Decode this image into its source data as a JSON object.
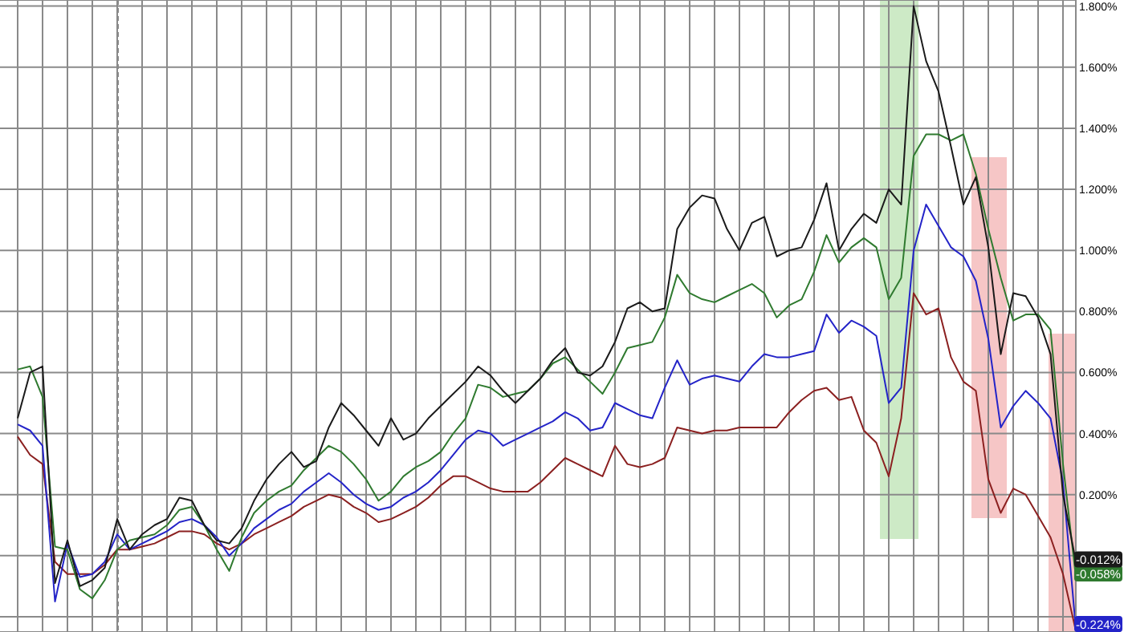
{
  "chart_data": {
    "type": "line",
    "ylim": [
      -0.25,
      1.82
    ],
    "categories": [
      null,
      null,
      null,
      null,
      null,
      null,
      null,
      null,
      null,
      null,
      null,
      null,
      null,
      null,
      null,
      null,
      null,
      null,
      null,
      null,
      null,
      null,
      null,
      null,
      null,
      null,
      null,
      null,
      null,
      null,
      null,
      null,
      null,
      null,
      null,
      null,
      null,
      null,
      null,
      null,
      null,
      null,
      null,
      null,
      null,
      null,
      null,
      null,
      null,
      null,
      null,
      null,
      null,
      null,
      null,
      null,
      null,
      null,
      null,
      null,
      null,
      null,
      null,
      null,
      null,
      null,
      null,
      null,
      null,
      null,
      null,
      null,
      null,
      null,
      null,
      null,
      null,
      null,
      null,
      null,
      null,
      null,
      null,
      null,
      null,
      null
    ],
    "yticks": [
      {
        "value": -0.2,
        "label": null
      },
      {
        "value": 0,
        "label": null
      },
      {
        "value": 0.2,
        "label": "0.200%"
      },
      {
        "value": 0.4,
        "label": "0.400%"
      },
      {
        "value": 0.6,
        "label": "0.600%"
      },
      {
        "value": 0.8,
        "label": "0.800%"
      },
      {
        "value": 1,
        "label": "1.000%"
      },
      {
        "value": 1.2,
        "label": "1.200%"
      },
      {
        "value": 1.4,
        "label": "1.400%"
      },
      {
        "value": 1.6,
        "label": "1.600%"
      },
      {
        "value": 1.8,
        "label": "1.800%"
      }
    ],
    "tick_labels": "y",
    "grid": true,
    "marker": "none",
    "line_style": "solid",
    "series": [
      {
        "color": "#8b2020",
        "values": [
          0.39,
          0.33,
          0.3,
          -0.02,
          -0.06,
          -0.06,
          -0.06,
          -0.03,
          0.02,
          0.02,
          0.03,
          0.04,
          0.06,
          0.08,
          0.08,
          0.07,
          0.04,
          0.02,
          0.04,
          0.07,
          0.09,
          0.11,
          0.13,
          0.16,
          0.18,
          0.2,
          0.19,
          0.16,
          0.14,
          0.11,
          0.12,
          0.14,
          0.16,
          0.19,
          0.23,
          0.26,
          0.26,
          0.24,
          0.22,
          0.21,
          0.21,
          0.21,
          0.24,
          0.28,
          0.32,
          0.3,
          0.28,
          0.26,
          0.36,
          0.3,
          0.29,
          0.3,
          0.32,
          0.42,
          0.41,
          0.4,
          0.41,
          0.41,
          0.42,
          0.42,
          0.42,
          0.42,
          0.47,
          0.51,
          0.54,
          0.55,
          0.51,
          0.52,
          0.41,
          0.37,
          0.26,
          0.45,
          0.86,
          0.79,
          0.81,
          0.65,
          0.57,
          0.54,
          0.25,
          0.14,
          0.22,
          0.2,
          0.13,
          0.06,
          -0.06,
          -0.24
        ]
      },
      {
        "color": "#2424c8",
        "values": [
          0.43,
          0.41,
          0.36,
          -0.15,
          0.04,
          -0.07,
          -0.06,
          -0.02,
          0.07,
          0.02,
          0.04,
          0.06,
          0.08,
          0.11,
          0.12,
          0.1,
          0.06,
          0.0,
          0.04,
          0.09,
          0.12,
          0.15,
          0.17,
          0.21,
          0.24,
          0.27,
          0.24,
          0.2,
          0.17,
          0.15,
          0.16,
          0.19,
          0.21,
          0.24,
          0.28,
          0.33,
          0.38,
          0.41,
          0.4,
          0.36,
          0.38,
          0.4,
          0.42,
          0.44,
          0.47,
          0.45,
          0.41,
          0.42,
          0.5,
          0.48,
          0.46,
          0.45,
          0.55,
          0.64,
          0.56,
          0.58,
          0.59,
          0.58,
          0.57,
          0.62,
          0.66,
          0.65,
          0.65,
          0.66,
          0.67,
          0.79,
          0.73,
          0.77,
          0.75,
          0.72,
          0.5,
          0.55,
          1.0,
          1.15,
          1.08,
          1.01,
          0.98,
          0.9,
          0.71,
          0.42,
          0.49,
          0.54,
          0.5,
          0.45,
          0.24,
          -0.224
        ],
        "value_labels": [
          null,
          null,
          null,
          null,
          null,
          null,
          null,
          null,
          null,
          null,
          null,
          null,
          null,
          null,
          null,
          null,
          null,
          null,
          null,
          null,
          null,
          null,
          null,
          null,
          null,
          null,
          null,
          null,
          null,
          null,
          null,
          null,
          null,
          null,
          null,
          null,
          null,
          null,
          null,
          null,
          null,
          null,
          null,
          null,
          null,
          null,
          null,
          null,
          null,
          null,
          null,
          null,
          null,
          null,
          null,
          null,
          null,
          null,
          null,
          null,
          null,
          null,
          null,
          null,
          null,
          null,
          null,
          null,
          null,
          null,
          null,
          null,
          null,
          null,
          null,
          null,
          null,
          null,
          null,
          null,
          null,
          null,
          null,
          null,
          null,
          "-0.224%"
        ]
      },
      {
        "color": "#2f7a2f",
        "values": [
          0.61,
          0.62,
          0.52,
          0.03,
          0.02,
          -0.11,
          -0.14,
          -0.08,
          0.02,
          0.05,
          0.06,
          0.07,
          0.1,
          0.15,
          0.16,
          0.1,
          0.02,
          -0.05,
          0.06,
          0.14,
          0.18,
          0.21,
          0.23,
          0.28,
          0.32,
          0.36,
          0.34,
          0.3,
          0.25,
          0.18,
          0.21,
          0.26,
          0.29,
          0.31,
          0.34,
          0.4,
          0.45,
          0.56,
          0.55,
          0.52,
          0.53,
          0.54,
          0.58,
          0.63,
          0.65,
          0.61,
          0.57,
          0.53,
          0.6,
          0.68,
          0.69,
          0.7,
          0.78,
          0.92,
          0.86,
          0.84,
          0.83,
          0.85,
          0.87,
          0.89,
          0.86,
          0.78,
          0.82,
          0.84,
          0.93,
          1.05,
          0.96,
          1.01,
          1.04,
          1.01,
          0.84,
          0.91,
          1.31,
          1.38,
          1.38,
          1.36,
          1.38,
          1.25,
          1.07,
          0.91,
          0.77,
          0.79,
          0.79,
          0.74,
          0.3,
          -0.058
        ],
        "value_labels": [
          null,
          null,
          null,
          null,
          null,
          null,
          null,
          null,
          null,
          null,
          null,
          null,
          null,
          null,
          null,
          null,
          null,
          null,
          null,
          null,
          null,
          null,
          null,
          null,
          null,
          null,
          null,
          null,
          null,
          null,
          null,
          null,
          null,
          null,
          null,
          null,
          null,
          null,
          null,
          null,
          null,
          null,
          null,
          null,
          null,
          null,
          null,
          null,
          null,
          null,
          null,
          null,
          null,
          null,
          null,
          null,
          null,
          null,
          null,
          null,
          null,
          null,
          null,
          null,
          null,
          null,
          null,
          null,
          null,
          null,
          null,
          null,
          null,
          null,
          null,
          null,
          null,
          null,
          null,
          null,
          null,
          null,
          null,
          null,
          null,
          "-0.058%"
        ]
      },
      {
        "color": "#1a1a1a",
        "values": [
          0.45,
          0.6,
          0.62,
          -0.09,
          0.05,
          -0.1,
          -0.08,
          -0.04,
          0.12,
          0.02,
          0.07,
          0.1,
          0.12,
          0.19,
          0.18,
          0.1,
          0.05,
          0.04,
          0.09,
          0.18,
          0.25,
          0.3,
          0.34,
          0.29,
          0.31,
          0.42,
          0.5,
          0.46,
          0.41,
          0.36,
          0.45,
          0.38,
          0.4,
          0.45,
          0.49,
          0.53,
          0.57,
          0.62,
          0.59,
          0.54,
          0.5,
          0.54,
          0.58,
          0.64,
          0.68,
          0.6,
          0.59,
          0.62,
          0.7,
          0.81,
          0.83,
          0.8,
          0.81,
          1.07,
          1.14,
          1.18,
          1.17,
          1.07,
          1.0,
          1.09,
          1.11,
          0.98,
          1.0,
          1.01,
          1.1,
          1.22,
          1.0,
          1.07,
          1.12,
          1.09,
          1.2,
          1.15,
          1.8,
          1.62,
          1.52,
          1.34,
          1.15,
          1.24,
          1.01,
          0.66,
          0.86,
          0.85,
          0.78,
          0.66,
          0.2,
          -0.012
        ],
        "value_labels": [
          null,
          null,
          null,
          null,
          null,
          null,
          null,
          null,
          null,
          null,
          null,
          null,
          null,
          null,
          null,
          null,
          null,
          null,
          null,
          null,
          null,
          null,
          null,
          null,
          null,
          null,
          null,
          null,
          null,
          null,
          null,
          null,
          null,
          null,
          null,
          null,
          null,
          null,
          null,
          null,
          null,
          null,
          null,
          null,
          null,
          null,
          null,
          null,
          null,
          null,
          null,
          null,
          null,
          null,
          null,
          null,
          null,
          null,
          null,
          null,
          null,
          null,
          null,
          null,
          null,
          null,
          null,
          null,
          null,
          null,
          null,
          null,
          null,
          null,
          null,
          null,
          null,
          null,
          null,
          null,
          null,
          null,
          null,
          null,
          null,
          "-0.012%"
        ]
      }
    ]
  }
}
